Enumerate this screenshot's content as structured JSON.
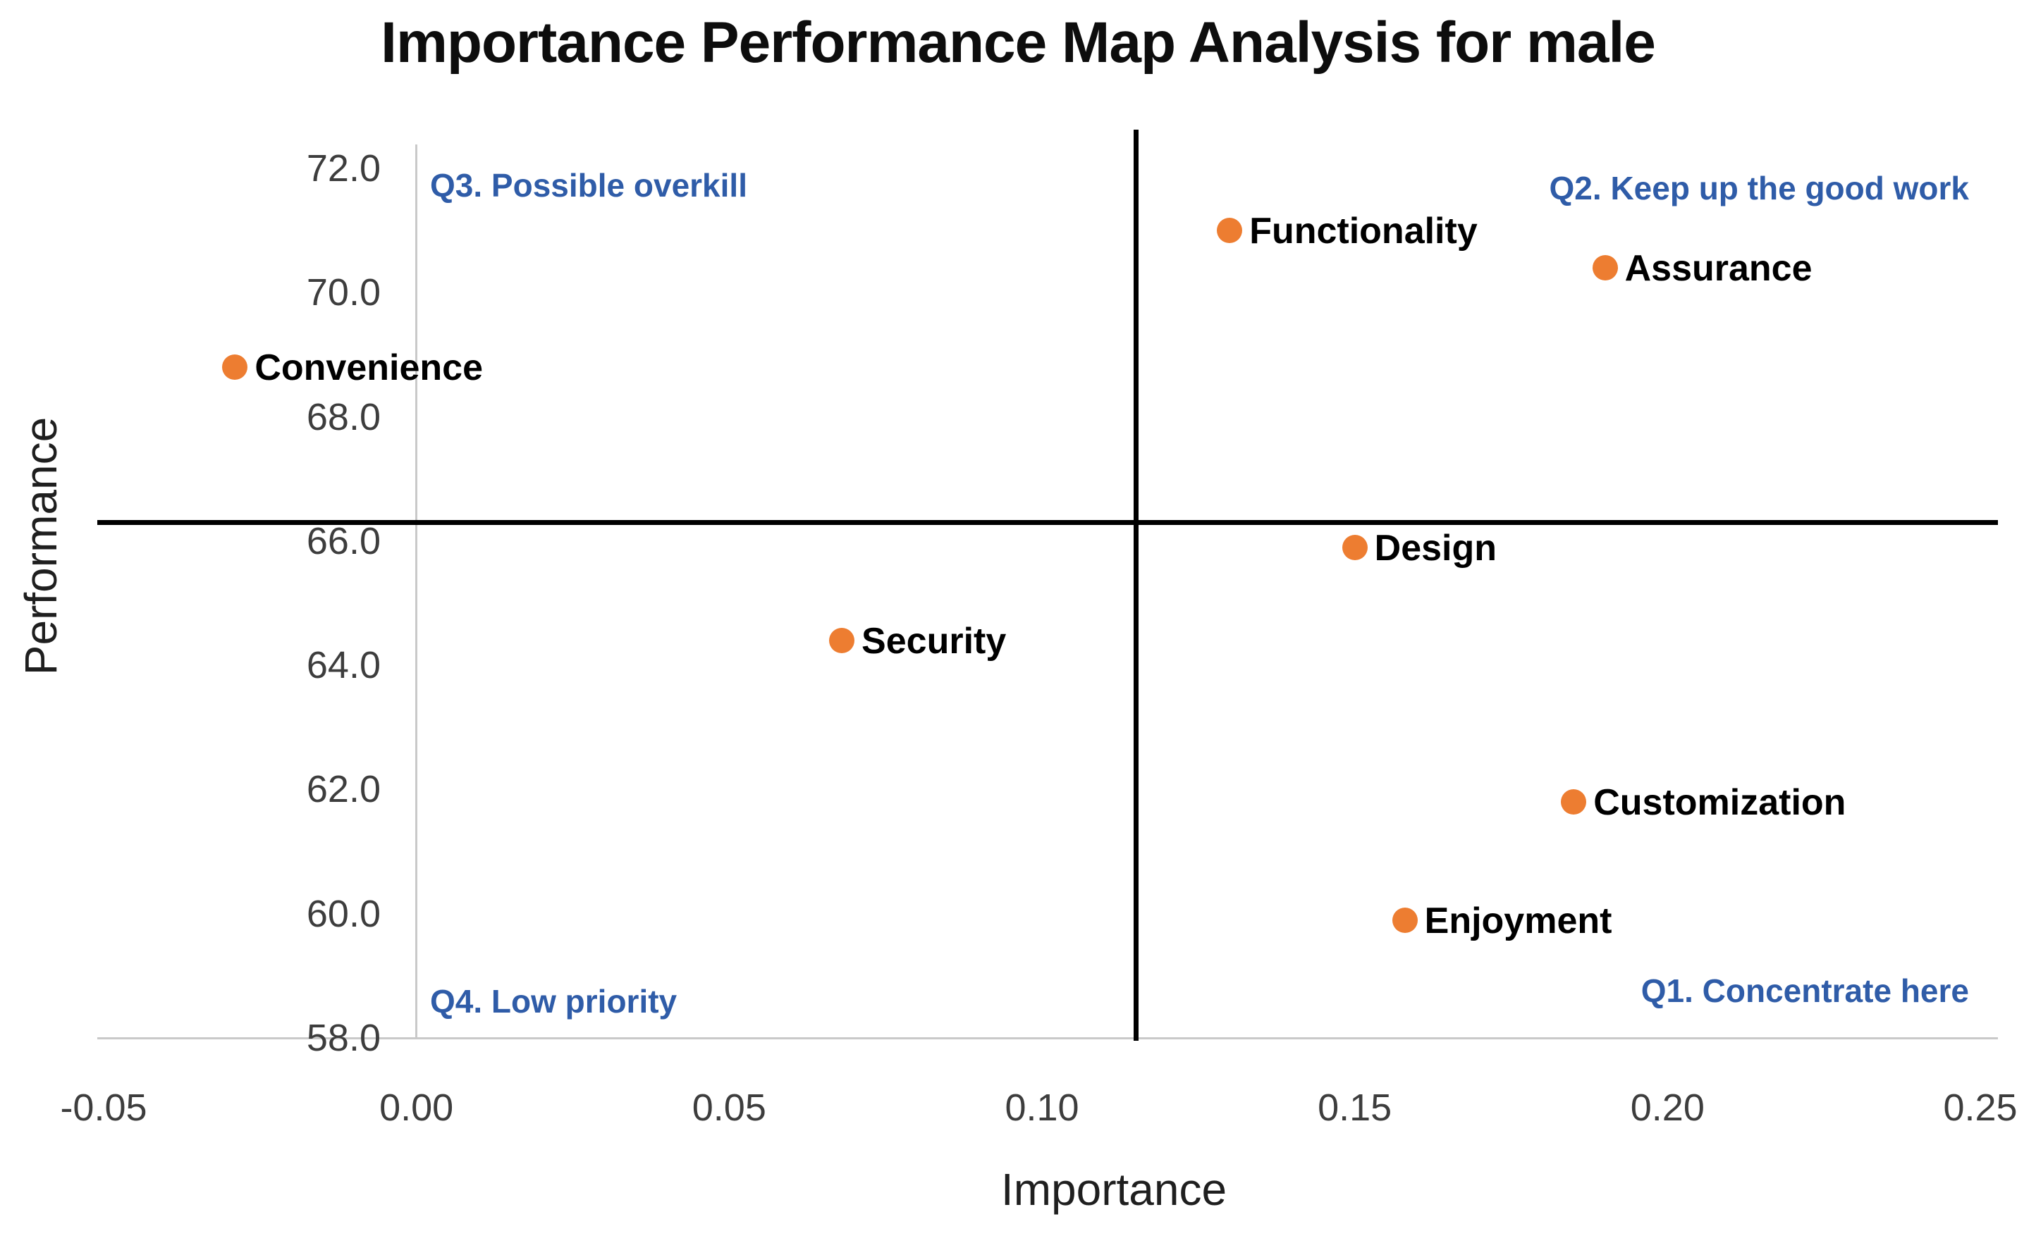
{
  "chart_data": {
    "type": "scatter",
    "title": "Importance Performance Map Analysis for male",
    "xlabel": "Importance",
    "ylabel": "Performance",
    "xlim": [
      -0.05,
      0.25
    ],
    "ylim": [
      58.0,
      72.0
    ],
    "x_ticks": [
      "-0.05",
      "0.00",
      "0.05",
      "0.10",
      "0.15",
      "0.20",
      "0.25"
    ],
    "y_ticks": [
      "72.0",
      "70.0",
      "68.0",
      "66.0",
      "64.0",
      "62.0",
      "60.0",
      "58.0"
    ],
    "grid": "off",
    "legend": "none",
    "points": [
      {
        "label": "Functionality",
        "x": 0.13,
        "y": 71.0
      },
      {
        "label": "Assurance",
        "x": 0.19,
        "y": 70.4
      },
      {
        "label": "Convenience",
        "x": -0.029,
        "y": 68.8
      },
      {
        "label": "Design",
        "x": 0.15,
        "y": 65.9
      },
      {
        "label": "Security",
        "x": 0.068,
        "y": 64.4
      },
      {
        "label": "Customization",
        "x": 0.185,
        "y": 61.8
      },
      {
        "label": "Enjoyment",
        "x": 0.158,
        "y": 59.9
      }
    ],
    "reference_lines": {
      "x": 0.115,
      "y": 66.3
    },
    "quadrant_labels": [
      {
        "id": "Q3",
        "text": "Q3. Possible overkill",
        "position": "top-left"
      },
      {
        "id": "Q2",
        "text": "Q2. Keep up the good work",
        "position": "top-right"
      },
      {
        "id": "Q4",
        "text": "Q4. Low priority",
        "position": "bottom-left"
      },
      {
        "id": "Q1",
        "text": "Q1. Concentrate here",
        "position": "bottom-right"
      }
    ],
    "colors": {
      "point": "#ED7D31",
      "quadrant_label": "#2F5CA8",
      "crosshair": "#000000",
      "axis_line": "#C9C9C9",
      "tick_text": "#3D3D3D"
    }
  }
}
